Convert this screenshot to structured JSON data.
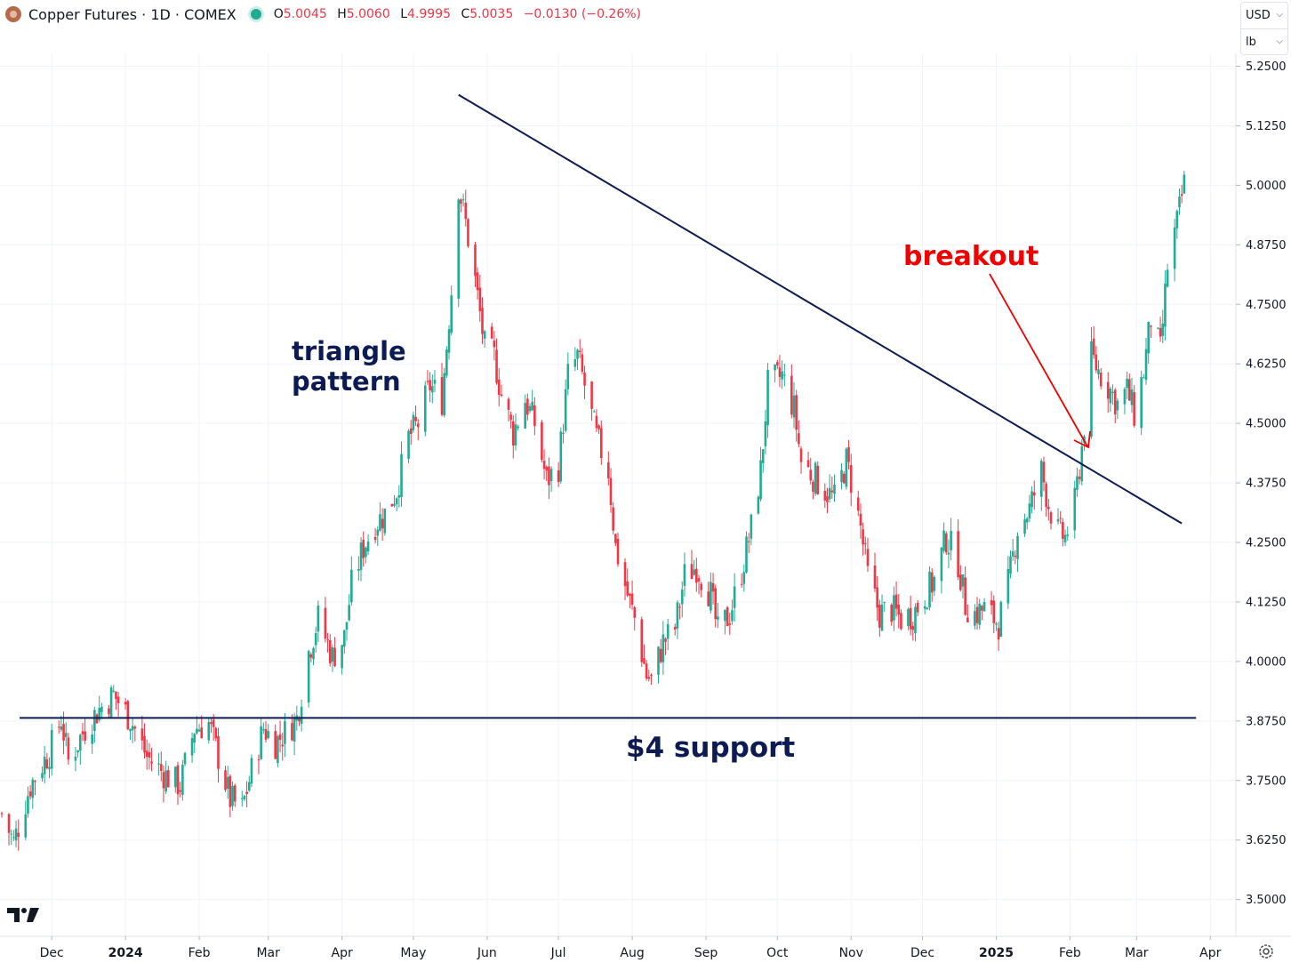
{
  "header": {
    "title": "Copper Futures · 1D · COMEX",
    "ohlc": [
      {
        "key": "O",
        "value": "5.0045"
      },
      {
        "key": "H",
        "value": "5.0060"
      },
      {
        "key": "L",
        "value": "4.9995"
      },
      {
        "key": "C",
        "value": "5.0035"
      }
    ],
    "change": "−0.0130 (−0.26%)"
  },
  "currency_selector": {
    "currency": "USD",
    "unit": "lb"
  },
  "annotations": {
    "triangle_line1": "triangle",
    "triangle_line2": "pattern",
    "breakout": "breakout",
    "support": "$4 support"
  },
  "colors": {
    "up": "#22ab94",
    "down": "#f23645",
    "trendline": "#0d1b54",
    "annotation_text": "#0d1b54",
    "breakout_text": "#f20000",
    "grid": "#f0f3fa"
  },
  "icons": {
    "settings": "gear-icon",
    "logo": "tradingview-logo"
  },
  "chart_data": {
    "type": "candlestick",
    "title": "Copper Futures · 1D · COMEX",
    "y_ticks": [
      "5.2500",
      "5.1250",
      "5.0000",
      "4.8750",
      "4.7500",
      "4.6250",
      "4.5000",
      "4.3750",
      "4.2500",
      "4.1250",
      "4.0000",
      "3.8750",
      "3.7500",
      "3.6250",
      "3.5000"
    ],
    "ylim": [
      3.47,
      5.3
    ],
    "x_ticks": [
      {
        "label": "Dec",
        "date": "2023-12-01",
        "bold": false
      },
      {
        "label": "2024",
        "date": "2024-01-01",
        "bold": true
      },
      {
        "label": "Feb",
        "date": "2024-02-01",
        "bold": false
      },
      {
        "label": "Mar",
        "date": "2024-03-01",
        "bold": false
      },
      {
        "label": "Apr",
        "date": "2024-04-01",
        "bold": false
      },
      {
        "label": "May",
        "date": "2024-05-01",
        "bold": false
      },
      {
        "label": "Jun",
        "date": "2024-06-01",
        "bold": false
      },
      {
        "label": "Jul",
        "date": "2024-07-01",
        "bold": false
      },
      {
        "label": "Aug",
        "date": "2024-08-01",
        "bold": false
      },
      {
        "label": "Sep",
        "date": "2024-09-01",
        "bold": false
      },
      {
        "label": "Oct",
        "date": "2024-10-01",
        "bold": false
      },
      {
        "label": "Nov",
        "date": "2024-11-01",
        "bold": false
      },
      {
        "label": "Dec",
        "date": "2024-12-01",
        "bold": false
      },
      {
        "label": "2025",
        "date": "2025-01-01",
        "bold": true
      },
      {
        "label": "Feb",
        "date": "2025-02-01",
        "bold": false
      },
      {
        "label": "Mar",
        "date": "2025-03-01",
        "bold": false
      },
      {
        "label": "Apr",
        "date": "2025-04-01",
        "bold": false
      }
    ],
    "xlim": [
      "2023-11-10",
      "2025-04-08"
    ],
    "grid": true,
    "price_path": [
      [
        "2023-11-10",
        3.68
      ],
      [
        "2023-11-15",
        3.62
      ],
      [
        "2023-11-22",
        3.74
      ],
      [
        "2023-11-30",
        3.81
      ],
      [
        "2023-12-05",
        3.88
      ],
      [
        "2023-12-08",
        3.79
      ],
      [
        "2023-12-15",
        3.86
      ],
      [
        "2023-12-21",
        3.9
      ],
      [
        "2023-12-27",
        3.93
      ],
      [
        "2024-01-03",
        3.88
      ],
      [
        "2024-01-10",
        3.8
      ],
      [
        "2024-01-18",
        3.76
      ],
      [
        "2024-01-24",
        3.74
      ],
      [
        "2024-01-30",
        3.86
      ],
      [
        "2024-02-05",
        3.87
      ],
      [
        "2024-02-09",
        3.8
      ],
      [
        "2024-02-14",
        3.71
      ],
      [
        "2024-02-19",
        3.69
      ],
      [
        "2024-02-23",
        3.77
      ],
      [
        "2024-02-28",
        3.86
      ],
      [
        "2024-03-04",
        3.83
      ],
      [
        "2024-03-08",
        3.85
      ],
      [
        "2024-03-13",
        3.88
      ],
      [
        "2024-03-18",
        4.02
      ],
      [
        "2024-03-22",
        4.09
      ],
      [
        "2024-03-28",
        4.01
      ],
      [
        "2024-04-02",
        4.05
      ],
      [
        "2024-04-05",
        4.16
      ],
      [
        "2024-04-10",
        4.24
      ],
      [
        "2024-04-15",
        4.29
      ],
      [
        "2024-04-19",
        4.31
      ],
      [
        "2024-04-24",
        4.36
      ],
      [
        "2024-04-29",
        4.47
      ],
      [
        "2024-05-03",
        4.5
      ],
      [
        "2024-05-08",
        4.58
      ],
      [
        "2024-05-13",
        4.55
      ],
      [
        "2024-05-17",
        4.78
      ],
      [
        "2024-05-20",
        5.0
      ],
      [
        "2024-05-23",
        4.92
      ],
      [
        "2024-05-27",
        4.8
      ],
      [
        "2024-05-31",
        4.66
      ],
      [
        "2024-06-04",
        4.64
      ],
      [
        "2024-06-07",
        4.56
      ],
      [
        "2024-06-12",
        4.48
      ],
      [
        "2024-06-17",
        4.55
      ],
      [
        "2024-06-21",
        4.5
      ],
      [
        "2024-06-26",
        4.38
      ],
      [
        "2024-07-01",
        4.41
      ],
      [
        "2024-07-05",
        4.6
      ],
      [
        "2024-07-09",
        4.64
      ],
      [
        "2024-07-12",
        4.58
      ],
      [
        "2024-07-17",
        4.47
      ],
      [
        "2024-07-22",
        4.4
      ],
      [
        "2024-07-25",
        4.24
      ],
      [
        "2024-07-30",
        4.14
      ],
      [
        "2024-08-02",
        4.09
      ],
      [
        "2024-08-07",
        3.97
      ],
      [
        "2024-08-09",
        3.96
      ],
      [
        "2024-08-14",
        4.04
      ],
      [
        "2024-08-19",
        4.07
      ],
      [
        "2024-08-23",
        4.18
      ],
      [
        "2024-08-28",
        4.2
      ],
      [
        "2024-09-03",
        4.14
      ],
      [
        "2024-09-06",
        4.06
      ],
      [
        "2024-09-11",
        4.1
      ],
      [
        "2024-09-16",
        4.19
      ],
      [
        "2024-09-20",
        4.28
      ],
      [
        "2024-09-24",
        4.4
      ],
      [
        "2024-09-27",
        4.58
      ],
      [
        "2024-09-30",
        4.59
      ],
      [
        "2024-10-03",
        4.6
      ],
      [
        "2024-10-08",
        4.53
      ],
      [
        "2024-10-11",
        4.42
      ],
      [
        "2024-10-16",
        4.39
      ],
      [
        "2024-10-21",
        4.36
      ],
      [
        "2024-10-25",
        4.34
      ],
      [
        "2024-10-30",
        4.42
      ],
      [
        "2024-11-01",
        4.38
      ],
      [
        "2024-11-05",
        4.28
      ],
      [
        "2024-11-08",
        4.18
      ],
      [
        "2024-11-13",
        4.1
      ],
      [
        "2024-11-18",
        4.11
      ],
      [
        "2024-11-22",
        4.09
      ],
      [
        "2024-11-27",
        4.1
      ],
      [
        "2024-12-02",
        4.14
      ],
      [
        "2024-12-06",
        4.17
      ],
      [
        "2024-12-11",
        4.26
      ],
      [
        "2024-12-16",
        4.21
      ],
      [
        "2024-12-19",
        4.12
      ],
      [
        "2024-12-23",
        4.1
      ],
      [
        "2024-12-27",
        4.11
      ],
      [
        "2025-01-02",
        4.08
      ],
      [
        "2025-01-06",
        4.16
      ],
      [
        "2025-01-10",
        4.28
      ],
      [
        "2025-01-15",
        4.32
      ],
      [
        "2025-01-20",
        4.4
      ],
      [
        "2025-01-23",
        4.33
      ],
      [
        "2025-01-27",
        4.27
      ],
      [
        "2025-01-30",
        4.26
      ],
      [
        "2025-02-03",
        4.33
      ],
      [
        "2025-02-06",
        4.45
      ],
      [
        "2025-02-10",
        4.64
      ],
      [
        "2025-02-13",
        4.61
      ],
      [
        "2025-02-18",
        4.57
      ],
      [
        "2025-02-21",
        4.54
      ],
      [
        "2025-02-25",
        4.57
      ],
      [
        "2025-02-28",
        4.52
      ],
      [
        "2025-03-04",
        4.61
      ],
      [
        "2025-03-07",
        4.72
      ],
      [
        "2025-03-11",
        4.65
      ],
      [
        "2025-03-14",
        4.83
      ],
      [
        "2025-03-18",
        4.92
      ],
      [
        "2025-03-21",
        5.0035
      ]
    ],
    "overlays": {
      "descending_trendline": {
        "from": [
          "2024-05-20",
          5.19
        ],
        "to": [
          "2025-03-20",
          4.29
        ]
      },
      "support_line": {
        "from": [
          "2023-11-10",
          3.8815
        ],
        "to": [
          "2025-03-26",
          3.8815
        ]
      }
    }
  }
}
